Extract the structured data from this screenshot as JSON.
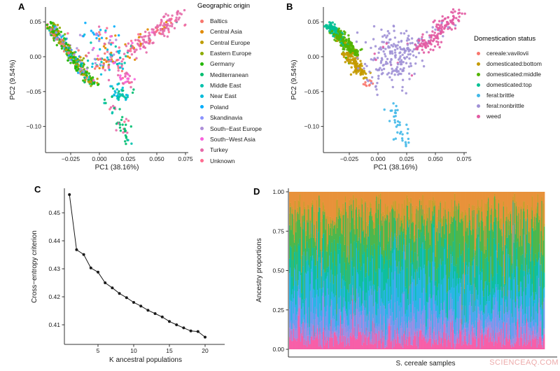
{
  "figure": {
    "background": "#ffffff"
  },
  "watermark": {
    "text": "SCIENCEAQ.COM",
    "color": "#edabab"
  },
  "panels": {
    "a": {
      "label": "A"
    },
    "b": {
      "label": "B"
    },
    "c": {
      "label": "C"
    },
    "d": {
      "label": "D"
    }
  },
  "chart_data": [
    {
      "id": "pca-geographic",
      "panel": "A",
      "type": "scatter",
      "xlabel": "PC1 (38.16%)",
      "ylabel": "PC2 (9.54%)",
      "xlim": [
        -0.047,
        0.0775
      ],
      "ylim": [
        -0.1375,
        0.0712
      ],
      "x_ticks": [
        -0.025,
        0.0,
        0.025,
        0.05,
        0.075
      ],
      "x_tick_labels": [
        "−0.025",
        "0.000",
        "0.025",
        "0.050",
        "0.075"
      ],
      "y_ticks": [
        0.05,
        0.0,
        -0.05,
        -0.1
      ],
      "y_tick_labels": [
        "0.05",
        "0.00",
        "−0.05",
        "−0.10"
      ],
      "grid": false,
      "legend_position": "right",
      "legend_title": "Geographic origin",
      "legend": [
        {
          "label": "Baltics",
          "color": "#F8766D"
        },
        {
          "label": "Central Asia",
          "color": "#E18A00"
        },
        {
          "label": "Central Europe",
          "color": "#BE9C00"
        },
        {
          "label": "Eastern Europe",
          "color": "#8CAB00"
        },
        {
          "label": "Germany",
          "color": "#24B700"
        },
        {
          "label": "Mediterranean",
          "color": "#00BE70"
        },
        {
          "label": "Middle East",
          "color": "#00C1AB"
        },
        {
          "label": "Near East",
          "color": "#00BBDA"
        },
        {
          "label": "Poland",
          "color": "#00ACFC"
        },
        {
          "label": "Skandinavia",
          "color": "#8B93FF"
        },
        {
          "label": "South−East Europe",
          "color": "#AD8FD9"
        },
        {
          "label": "South−West Asia",
          "color": "#F962DD"
        },
        {
          "label": "Turkey",
          "color": "#E569A8"
        },
        {
          "label": "Unknown",
          "color": "#FF6C90"
        }
      ],
      "point_radius": 1.7,
      "seed": 3,
      "clusters": [
        {
          "shape": "band",
          "from": [
            -0.0425,
            0.0445
          ],
          "to": [
            -0.01,
            -0.03
          ],
          "sx": 0.0026,
          "sy": 0.0036,
          "n": 330,
          "colors": {
            "Germany": 30,
            "Poland": 10,
            "Skandinavia": 8,
            "Eastern Europe": 12,
            "Central Europe": 9,
            "Central Asia": 5,
            "South−East Europe": 8,
            "Baltics": 5,
            "Unknown": 3,
            "Mediterranean": 6,
            "Middle East": 4
          }
        },
        {
          "shape": "band",
          "from": [
            -0.01,
            -0.03
          ],
          "to": [
            -0.004,
            -0.041
          ],
          "sx": 0.002,
          "sy": 0.0025,
          "n": 28,
          "colors": {
            "Germany": 35,
            "Mediterranean": 30,
            "Eastern Europe": 15,
            "Central Europe": 20
          }
        },
        {
          "shape": "blob",
          "center": [
            -0.004,
            0.033
          ],
          "sx": 0.009,
          "sy": 0.006,
          "n": 20,
          "colors": {
            "Poland": 35,
            "Skandinavia": 20,
            "Baltics": 15,
            "Unknown": 15,
            "South−East Europe": 15
          }
        },
        {
          "shape": "blob",
          "center": [
            0.01,
            0.0
          ],
          "sx": 0.01,
          "sy": 0.016,
          "n": 120,
          "colors": {
            "Near East": 16,
            "Middle East": 14,
            "Turkey": 16,
            "South−West Asia": 10,
            "Central Asia": 12,
            "South−East Europe": 10,
            "Unknown": 12,
            "Baltics": 10
          }
        },
        {
          "shape": "blob",
          "center": [
            0.022,
            -0.03
          ],
          "sx": 0.005,
          "sy": 0.006,
          "n": 26,
          "colors": {
            "South−West Asia": 40,
            "Turkey": 35,
            "Unknown": 25
          }
        },
        {
          "shape": "blob",
          "center": [
            0.019,
            -0.052
          ],
          "sx": 0.006,
          "sy": 0.006,
          "n": 40,
          "colors": {
            "Near East": 50,
            "Middle East": 35,
            "Mediterranean": 15
          }
        },
        {
          "shape": "band",
          "from": [
            0.01,
            -0.06
          ],
          "to": [
            0.026,
            -0.125
          ],
          "sx": 0.0038,
          "sy": 0.004,
          "n": 46,
          "colors": {
            "Mediterranean": 45,
            "Middle East": 18,
            "Unknown": 15,
            "Turkey": 22
          }
        },
        {
          "shape": "band",
          "from": [
            0.027,
            0.006
          ],
          "to": [
            0.066,
            0.057
          ],
          "sx": 0.0045,
          "sy": 0.005,
          "n": 150,
          "colors": {
            "Turkey": 80,
            "Baltics": 4,
            "Unknown": 5,
            "Central Asia": 4,
            "Middle East": 4,
            "South−West Asia": 3
          }
        },
        {
          "shape": "blob",
          "center": [
            0.071,
            0.062
          ],
          "sx": 0.0035,
          "sy": 0.0035,
          "n": 8,
          "colors": {
            "Turkey": 100
          }
        }
      ]
    },
    {
      "id": "pca-domestication",
      "panel": "B",
      "type": "scatter",
      "xlabel": "PC1 (38.16%)",
      "ylabel": "PC2 (9.54%)",
      "xlim": [
        -0.047,
        0.0775
      ],
      "ylim": [
        -0.1375,
        0.0712
      ],
      "x_ticks": [
        -0.025,
        0.0,
        0.025,
        0.05,
        0.075
      ],
      "x_tick_labels": [
        "−0.025",
        "0.000",
        "0.025",
        "0.050",
        "0.075"
      ],
      "y_ticks": [
        0.05,
        0.0,
        -0.05,
        -0.1
      ],
      "y_tick_labels": [
        "0.05",
        "0.00",
        "−0.05",
        "−0.10"
      ],
      "grid": false,
      "legend_position": "right",
      "legend_title": "Domestication status",
      "legend": [
        {
          "label": "cereale:vavilovii",
          "color": "#F8766D"
        },
        {
          "label": "domesticated:bottom",
          "color": "#C49A00"
        },
        {
          "label": "domesticated:middle",
          "color": "#53B400"
        },
        {
          "label": "domesticated:top",
          "color": "#00C094"
        },
        {
          "label": "feral:brittle",
          "color": "#41B8E8"
        },
        {
          "label": "feral:nonbrittle",
          "color": "#A091D6"
        },
        {
          "label": "weed",
          "color": "#E25AA2"
        }
      ],
      "point_radius": 1.7,
      "seed": 5,
      "clusters": [
        {
          "shape": "band",
          "from": [
            -0.044,
            0.047
          ],
          "to": [
            -0.033,
            0.028
          ],
          "sx": 0.0022,
          "sy": 0.003,
          "n": 100,
          "colors": {
            "domesticated:top": 95,
            "domesticated:middle": 5
          }
        },
        {
          "shape": "band",
          "from": [
            -0.036,
            0.033
          ],
          "to": [
            -0.018,
            0.002
          ],
          "sx": 0.0028,
          "sy": 0.0038,
          "n": 190,
          "colors": {
            "domesticated:middle": 93,
            "domesticated:top": 4,
            "domesticated:bottom": 3
          }
        },
        {
          "shape": "band",
          "from": [
            -0.027,
            0.004
          ],
          "to": [
            -0.012,
            -0.026
          ],
          "sx": 0.0026,
          "sy": 0.0034,
          "n": 120,
          "colors": {
            "domesticated:bottom": 95,
            "domesticated:middle": 5
          }
        },
        {
          "shape": "blob",
          "center": [
            -0.009,
            -0.04
          ],
          "sx": 0.0028,
          "sy": 0.004,
          "n": 9,
          "colors": {
            "cereale:vavilovii": 100
          }
        },
        {
          "shape": "blob",
          "center": [
            0.012,
            -0.003
          ],
          "sx": 0.012,
          "sy": 0.02,
          "n": 185,
          "colors": {
            "feral:nonbrittle": 96,
            "weed": 4
          }
        },
        {
          "shape": "blob",
          "center": [
            0.032,
            0.018
          ],
          "sx": 0.006,
          "sy": 0.008,
          "n": 25,
          "colors": {
            "feral:nonbrittle": 85,
            "weed": 15
          }
        },
        {
          "shape": "band",
          "from": [
            0.013,
            -0.068
          ],
          "to": [
            0.024,
            -0.125
          ],
          "sx": 0.0035,
          "sy": 0.004,
          "n": 35,
          "colors": {
            "feral:brittle": 100
          }
        },
        {
          "shape": "band",
          "from": [
            0.038,
            0.013
          ],
          "to": [
            0.066,
            0.057
          ],
          "sx": 0.0045,
          "sy": 0.005,
          "n": 135,
          "colors": {
            "weed": 92,
            "feral:nonbrittle": 8
          }
        },
        {
          "shape": "blob",
          "center": [
            0.071,
            0.063
          ],
          "sx": 0.003,
          "sy": 0.003,
          "n": 7,
          "colors": {
            "weed": 100
          }
        }
      ]
    },
    {
      "id": "cross-entropy",
      "panel": "C",
      "type": "line",
      "xlabel": "K ancestral populations",
      "ylabel": "Cross−entropy criterion",
      "x": [
        1,
        2,
        3,
        4,
        5,
        6,
        7,
        8,
        9,
        10,
        11,
        12,
        13,
        14,
        15,
        16,
        17,
        18,
        19,
        20
      ],
      "y": [
        0.4565,
        0.4368,
        0.4351,
        0.4303,
        0.4288,
        0.425,
        0.4232,
        0.4212,
        0.4197,
        0.418,
        0.4167,
        0.4152,
        0.414,
        0.4128,
        0.4112,
        0.41,
        0.4089,
        0.4078,
        0.4076,
        0.4056
      ],
      "x_ticks": [
        5,
        10,
        15,
        20
      ],
      "x_tick_labels": [
        "5",
        "10",
        "15",
        "20"
      ],
      "y_ticks": [
        0.41,
        0.42,
        0.43,
        0.44,
        0.45
      ],
      "y_tick_labels": [
        "0.41",
        "0.42",
        "0.43",
        "0.44",
        "0.45"
      ],
      "xlim": [
        0.3,
        20.7
      ],
      "ylim": [
        0.403,
        0.458
      ],
      "grid": false,
      "line_color": "#1a1a1a"
    },
    {
      "id": "ancestry-proportions",
      "panel": "D",
      "type": "stacked_bar",
      "xlabel": "S. cereale samples",
      "ylabel": "Ancestry proportions",
      "n_samples": 320,
      "ylim": [
        0,
        1
      ],
      "y_ticks": [
        0.0,
        0.25,
        0.5,
        0.75,
        1.0
      ],
      "y_tick_labels": [
        "0.00",
        "0.25",
        "0.50",
        "0.75",
        "1.00"
      ],
      "grid": false,
      "seed": 9,
      "components": [
        {
          "name": "ancestry-comp-1",
          "color": "#F75FA8",
          "mean": 0.075
        },
        {
          "name": "ancestry-comp-2",
          "color": "#A58CE0",
          "mean": 0.065
        },
        {
          "name": "ancestry-comp-3",
          "color": "#6E9BF0",
          "mean": 0.1
        },
        {
          "name": "ancestry-comp-4",
          "color": "#29B5E5",
          "mean": 0.165
        },
        {
          "name": "ancestry-comp-5",
          "color": "#0FBF9E",
          "mean": 0.165
        },
        {
          "name": "ancestry-comp-6",
          "color": "#4CB74C",
          "mean": 0.21
        },
        {
          "name": "ancestry-comp-7",
          "color": "#C2A22E",
          "mean": 0.05
        },
        {
          "name": "ancestry-comp-8",
          "color": "#E8923A",
          "mean": 0.17
        }
      ]
    }
  ]
}
